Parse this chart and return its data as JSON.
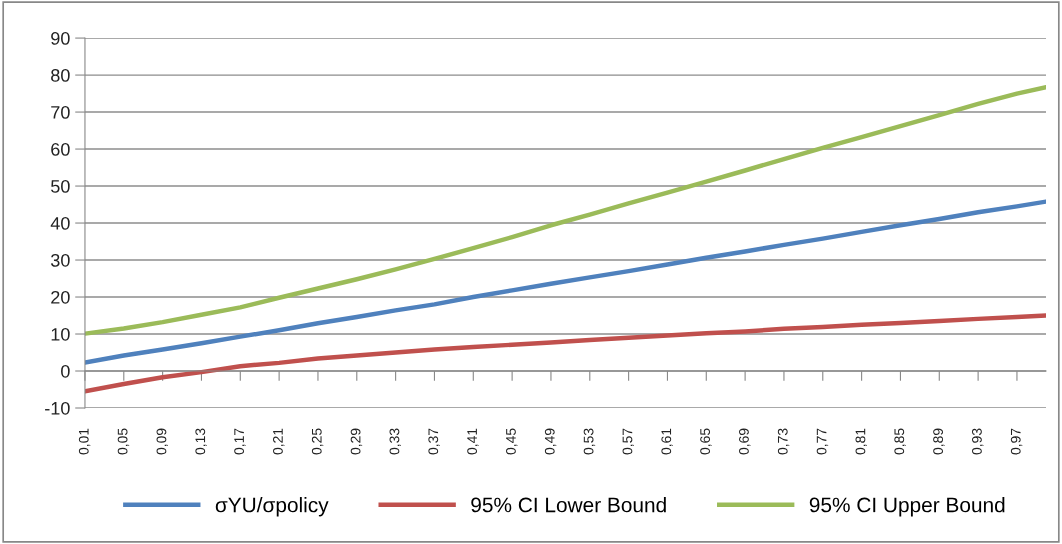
{
  "chart_data": {
    "type": "line",
    "x": [
      0.01,
      0.05,
      0.09,
      0.13,
      0.17,
      0.21,
      0.25,
      0.29,
      0.33,
      0.37,
      0.41,
      0.45,
      0.49,
      0.53,
      0.57,
      0.61,
      0.65,
      0.69,
      0.73,
      0.77,
      0.81,
      0.85,
      0.89,
      0.93,
      0.97,
      1.0
    ],
    "series": [
      {
        "name": "σYU/σpolicy",
        "color": "#4f81bd",
        "values": [
          2.3,
          4.2,
          5.8,
          7.5,
          9.3,
          11,
          12.9,
          14.6,
          16.4,
          18.0,
          20.0,
          21.8,
          23.6,
          25.3,
          27.0,
          28.8,
          30.6,
          32.3,
          34.1,
          35.8,
          37.6,
          39.4,
          41.1,
          42.9,
          44.5,
          45.8
        ]
      },
      {
        "name": "95% CI Lower Bound",
        "color": "#c0504d",
        "values": [
          -5.5,
          -3.5,
          -1.7,
          -0.3,
          1.3,
          2.2,
          3.4,
          4.2,
          5.0,
          5.8,
          6.5,
          7.1,
          7.7,
          8.4,
          9.0,
          9.6,
          10.2,
          10.7,
          11.4,
          11.9,
          12.5,
          13.0,
          13.5,
          14.1,
          14.6,
          15.0
        ]
      },
      {
        "name": "95% CI Upper Bound",
        "color": "#9bbb59",
        "values": [
          10.1,
          11.5,
          13.2,
          15.2,
          17.2,
          19.8,
          22.3,
          24.8,
          27.5,
          30.3,
          33.2,
          36.2,
          39.4,
          42.3,
          45.3,
          48.2,
          51.2,
          54.2,
          57.3,
          60.3,
          63.2,
          66.2,
          69.2,
          72.2,
          75.0,
          76.7
        ]
      }
    ],
    "xlim": [
      0.01,
      1.0
    ],
    "xticks": [
      {
        "value": 0.01,
        "label": "0,01"
      },
      {
        "value": 0.05,
        "label": "0,05"
      },
      {
        "value": 0.09,
        "label": "0,09"
      },
      {
        "value": 0.13,
        "label": "0,13"
      },
      {
        "value": 0.17,
        "label": "0,17"
      },
      {
        "value": 0.21,
        "label": "0,21"
      },
      {
        "value": 0.25,
        "label": "0,25"
      },
      {
        "value": 0.29,
        "label": "0,29"
      },
      {
        "value": 0.33,
        "label": "0,33"
      },
      {
        "value": 0.37,
        "label": "0,37"
      },
      {
        "value": 0.41,
        "label": "0,41"
      },
      {
        "value": 0.45,
        "label": "0,45"
      },
      {
        "value": 0.49,
        "label": "0,49"
      },
      {
        "value": 0.53,
        "label": "0,53"
      },
      {
        "value": 0.57,
        "label": "0,57"
      },
      {
        "value": 0.61,
        "label": "0,61"
      },
      {
        "value": 0.65,
        "label": "0,65"
      },
      {
        "value": 0.69,
        "label": "0,69"
      },
      {
        "value": 0.73,
        "label": "0,73"
      },
      {
        "value": 0.77,
        "label": "0,77"
      },
      {
        "value": 0.81,
        "label": "0,81"
      },
      {
        "value": 0.85,
        "label": "0,85"
      },
      {
        "value": 0.89,
        "label": "0,89"
      },
      {
        "value": 0.93,
        "label": "0,93"
      },
      {
        "value": 0.97,
        "label": "0,97"
      }
    ],
    "ylim": [
      -10,
      90
    ],
    "yticks": [
      -10,
      0,
      10,
      20,
      30,
      40,
      50,
      60,
      70,
      80,
      90
    ],
    "grid": "y",
    "legend": "bottom",
    "marker": "none",
    "line_style": "solid"
  }
}
